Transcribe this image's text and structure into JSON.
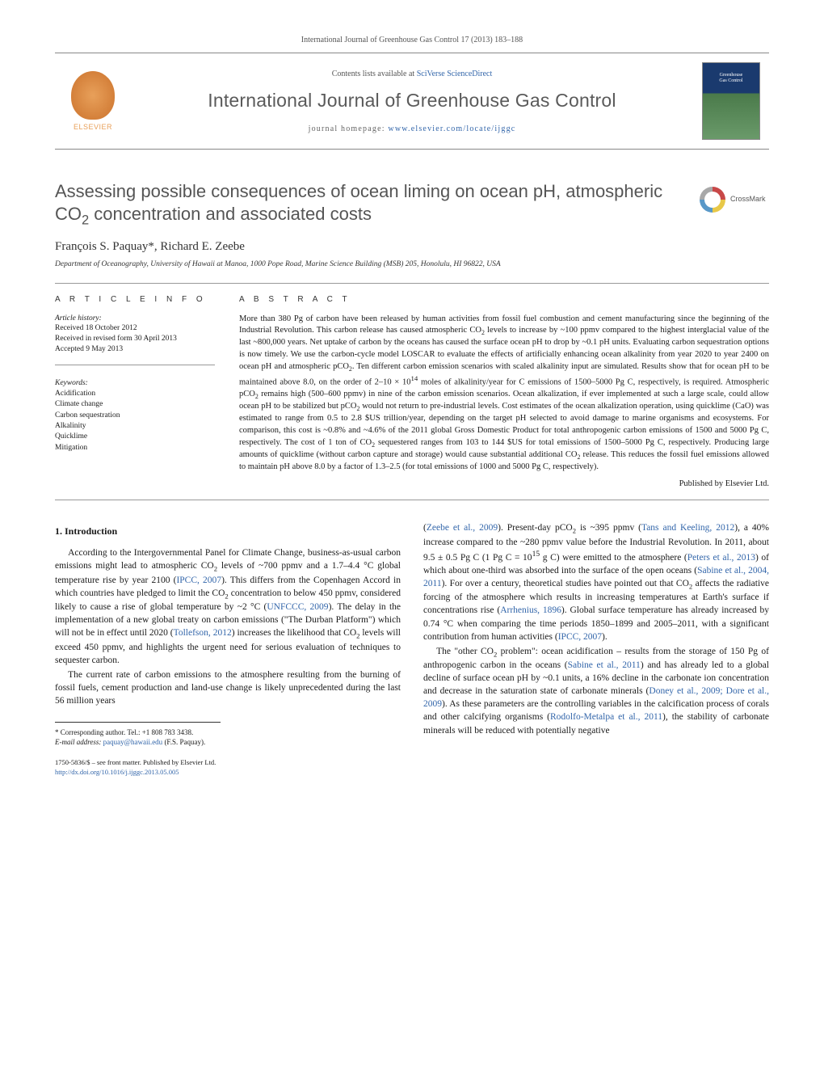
{
  "colors": {
    "link": "#3366aa",
    "heading_gray": "#555555",
    "text": "#1a1a1a",
    "rule": "#999999",
    "elsevier_orange": "#e8a05a",
    "cover_top": "#1a3a6e",
    "cover_bottom": "#6a9a6a"
  },
  "typography": {
    "body_fontsize_pt": 9,
    "title_fontsize_pt": 17,
    "journal_name_fontsize_pt": 18,
    "abstract_fontsize_pt": 8,
    "footnote_fontsize_pt": 7
  },
  "header": {
    "citation": "International Journal of Greenhouse Gas Control 17 (2013) 183–188",
    "contents_prefix": "Contents lists available at ",
    "contents_link": "SciVerse ScienceDirect",
    "journal_name": "International Journal of Greenhouse Gas Control",
    "homepage_prefix": "journal homepage: ",
    "homepage_url": "www.elsevier.com/locate/ijggc",
    "elsevier_label": "ELSEVIER",
    "cover_title_line1": "Greenhouse",
    "cover_title_line2": "Gas Control",
    "crossmark": "CrossMark"
  },
  "article": {
    "title_html": "Assessing possible consequences of ocean liming on ocean pH, atmospheric CO<sub>2</sub> concentration and associated costs",
    "authors": "François S. Paquay*, Richard E. Zeebe",
    "affiliation": "Department of Oceanography, University of Hawaii at Manoa, 1000 Pope Road, Marine Science Building (MSB) 205, Honolulu, HI 96822, USA"
  },
  "meta": {
    "info_label": "A R T I C L E   I N F O",
    "abstract_label": "A B S T R A C T",
    "history_label": "Article history:",
    "received": "Received 18 October 2012",
    "revised": "Received in revised form 30 April 2013",
    "accepted": "Accepted 9 May 2013",
    "keywords_label": "Keywords:",
    "keywords": [
      "Acidification",
      "Climate change",
      "Carbon sequestration",
      "Alkalinity",
      "Quicklime",
      "Mitigation"
    ]
  },
  "abstract": {
    "text_html": "More than 380 Pg of carbon have been released by human activities from fossil fuel combustion and cement manufacturing since the beginning of the Industrial Revolution. This carbon release has caused atmospheric CO<sub>2</sub> levels to increase by ~100 ppmv compared to the highest interglacial value of the last ~800,000 years. Net uptake of carbon by the oceans has caused the surface ocean pH to drop by ~0.1 pH units. Evaluating carbon sequestration options is now timely. We use the carbon-cycle model LOSCAR to evaluate the effects of artificially enhancing ocean alkalinity from year 2020 to year 2400 on ocean pH and atmospheric pCO<sub>2</sub>. Ten different carbon emission scenarios with scaled alkalinity input are simulated. Results show that for ocean pH to be maintained above 8.0, on the order of 2–10 × 10<sup>14</sup> moles of alkalinity/year for C emissions of 1500–5000 Pg C, respectively, is required. Atmospheric pCO<sub>2</sub> remains high (500–600 ppmv) in nine of the carbon emission scenarios. Ocean alkalization, if ever implemented at such a large scale, could allow ocean pH to be stabilized but pCO<sub>2</sub> would not return to pre-industrial levels. Cost estimates of the ocean alkalization operation, using quicklime (CaO) was estimated to range from 0.5 to 2.8 $US trillion/year, depending on the target pH selected to avoid damage to marine organisms and ecosystems. For comparison, this cost is ~0.8% and ~4.6% of the 2011 global Gross Domestic Product for total anthropogenic carbon emissions of 1500 and 5000 Pg C, respectively. The cost of 1 ton of CO<sub>2</sub> sequestered ranges from 103 to 144 $US for total emissions of 1500–5000 Pg C, respectively. Producing large amounts of quicklime (without carbon capture and storage) would cause substantial additional CO<sub>2</sub> release. This reduces the fossil fuel emissions allowed to maintain pH above 8.0 by a factor of 1.3–2.5 (for total emissions of 1000 and 5000 Pg C, respectively).",
    "published_by": "Published by Elsevier Ltd."
  },
  "body": {
    "section1_heading": "1. Introduction",
    "p1_html": "According to the Intergovernmental Panel for Climate Change, business-as-usual carbon emissions might lead to atmospheric CO<sub>2</sub> levels of ~700 ppmv and a 1.7–4.4 °C global temperature rise by year 2100 (<a href='#'>IPCC, 2007</a>). This differs from the Copenhagen Accord in which countries have pledged to limit the CO<sub>2</sub> concentration to below 450 ppmv, considered likely to cause a rise of global temperature by ~2 °C (<a href='#'>UNFCCC, 2009</a>). The delay in the implementation of a new global treaty on carbon emissions (\"The Durban Platform\") which will not be in effect until 2020 (<a href='#'>Tollefson, 2012</a>) increases the likelihood that CO<sub>2</sub> levels will exceed 450 ppmv, and highlights the urgent need for serious evaluation of techniques to sequester carbon.",
    "p2_html": "The current rate of carbon emissions to the atmosphere resulting from the burning of fossil fuels, cement production and land-use change is likely unprecedented during the last 56 million years",
    "p3_html": "(<a href='#'>Zeebe et al., 2009</a>). Present-day pCO<sub>2</sub> is ~395 ppmv (<a href='#'>Tans and Keeling, 2012</a>), a 40% increase compared to the ~280 ppmv value before the Industrial Revolution. In 2011, about 9.5 ± 0.5 Pg C (1 Pg C = 10<sup>15</sup> g C) were emitted to the atmosphere (<a href='#'>Peters et al., 2013</a>) of which about one-third was absorbed into the surface of the open oceans (<a href='#'>Sabine et al., 2004, 2011</a>). For over a century, theoretical studies have pointed out that CO<sub>2</sub> affects the radiative forcing of the atmosphere which results in increasing temperatures at Earth's surface if concentrations rise (<a href='#'>Arrhenius, 1896</a>). Global surface temperature has already increased by 0.74 °C when comparing the time periods 1850–1899 and 2005–2011, with a significant contribution from human activities (<a href='#'>IPCC, 2007</a>).",
    "p4_html": "The \"other CO<sub>2</sub> problem\": ocean acidification – results from the storage of 150 Pg of anthropogenic carbon in the oceans (<a href='#'>Sabine et al., 2011</a>) and has already led to a global decline of surface ocean pH by ~0.1 units, a 16% decline in the carbonate ion concentration and decrease in the saturation state of carbonate minerals (<a href='#'>Doney et al., 2009; Dore et al., 2009</a>). As these parameters are the controlling variables in the calcification process of corals and other calcifying organisms (<a href='#'>Rodolfo-Metalpa et al., 2011</a>), the stability of carbonate minerals will be reduced with potentially negative"
  },
  "footnote": {
    "corr_label": "* Corresponding author. Tel.: +1 808 783 3438.",
    "email_label": "E-mail address: ",
    "email": "paquay@hawaii.edu",
    "email_suffix": " (F.S. Paquay)."
  },
  "copyright": {
    "line1": "1750-5836/$ – see front matter. Published by Elsevier Ltd.",
    "doi": "http://dx.doi.org/10.1016/j.ijggc.2013.05.005"
  }
}
